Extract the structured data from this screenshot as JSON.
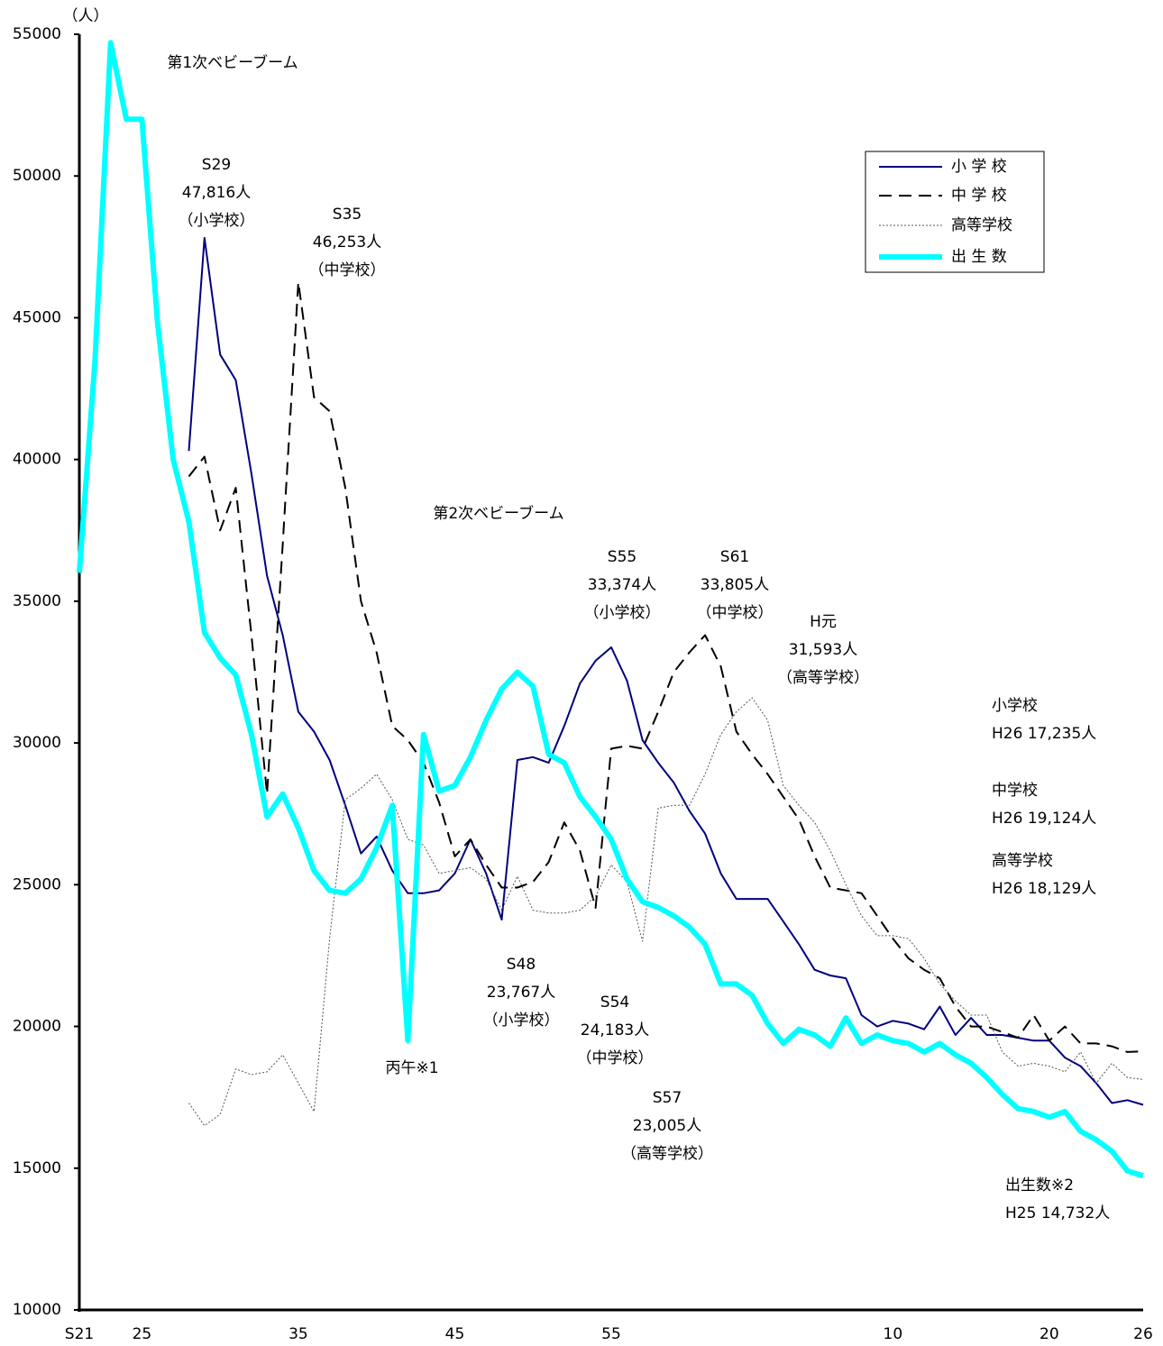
{
  "chart_data": {
    "type": "line",
    "unit_label": "（人）",
    "categories": [
      "S21",
      null,
      null,
      null,
      "25",
      null,
      null,
      null,
      null,
      null,
      null,
      null,
      null,
      null,
      "35",
      null,
      null,
      null,
      null,
      null,
      null,
      null,
      null,
      null,
      "45",
      null,
      null,
      null,
      null,
      null,
      null,
      null,
      null,
      null,
      "55",
      null,
      null,
      null,
      null,
      null,
      null,
      null,
      null,
      null,
      null,
      null,
      null,
      null,
      null,
      null,
      null,
      null,
      "10",
      null,
      null,
      null,
      null,
      null,
      null,
      null,
      null,
      null,
      "20",
      null,
      null,
      null,
      null,
      null,
      "26"
    ],
    "ylim": [
      10000,
      55000
    ],
    "yticks": [
      10000,
      15000,
      20000,
      25000,
      30000,
      35000,
      40000,
      45000,
      50000,
      55000
    ],
    "grid": false,
    "legend": "upper right",
    "series": [
      {
        "name": "小 学 校",
        "color": "#000080",
        "width": 2,
        "dash": "solid",
        "values": [
          null,
          null,
          null,
          null,
          null,
          null,
          null,
          40300,
          47816,
          43700,
          42800,
          39500,
          35900,
          33800,
          31100,
          30400,
          29400,
          27800,
          26100,
          26700,
          25500,
          24700,
          24700,
          24800,
          25400,
          26600,
          25400,
          23767,
          29400,
          29500,
          29300,
          30600,
          32100,
          32900,
          33374,
          32200,
          30100,
          29300,
          28600,
          27600,
          26800,
          25400,
          24500,
          24500,
          24500,
          23700,
          22900,
          22000,
          21800,
          21700,
          20400,
          20000,
          20200,
          20100,
          19900,
          20700,
          19700,
          20300,
          19700,
          19700,
          19600,
          19500,
          19500,
          18900,
          18600,
          18000,
          17300,
          17400,
          17235
        ]
      },
      {
        "name": "中 学 校",
        "color": "#000000",
        "width": 2,
        "dash": "dashed",
        "values": [
          null,
          null,
          null,
          null,
          null,
          null,
          null,
          39400,
          40100,
          37500,
          39000,
          33800,
          28200,
          37000,
          46253,
          42200,
          41700,
          39000,
          35000,
          33200,
          30600,
          30100,
          29300,
          27900,
          26000,
          26600,
          25700,
          24900,
          24900,
          25100,
          25800,
          27200,
          26200,
          24183,
          29800,
          29900,
          29800,
          31100,
          32500,
          33200,
          33805,
          32700,
          30400,
          29600,
          28900,
          28100,
          27300,
          26000,
          24900,
          24800,
          24700,
          23900,
          23100,
          22400,
          22000,
          21700,
          20700,
          20000,
          20000,
          19800,
          19600,
          20400,
          19500,
          20000,
          19400,
          19400,
          19300,
          19100,
          19124
        ]
      },
      {
        "name": "高等学校",
        "color": "#555555",
        "width": 1,
        "dash": "dotted",
        "values": [
          null,
          null,
          null,
          null,
          null,
          null,
          null,
          17300,
          16500,
          16900,
          18500,
          18300,
          18400,
          19000,
          18000,
          17000,
          23100,
          28000,
          28400,
          28900,
          28000,
          26600,
          26400,
          25400,
          25500,
          25600,
          25200,
          24100,
          25300,
          24100,
          24000,
          24000,
          24100,
          24600,
          25700,
          25100,
          23005,
          27700,
          27800,
          27800,
          28900,
          30300,
          31100,
          31593,
          30800,
          28500,
          27800,
          27200,
          26200,
          25000,
          23900,
          23200,
          23200,
          23100,
          22400,
          21500,
          20900,
          20400,
          20400,
          19100,
          18600,
          18700,
          18600,
          18400,
          19100,
          18000,
          18700,
          18200,
          18129
        ]
      },
      {
        "name": "出 生 数",
        "color": "#00ffff",
        "width": 6,
        "dash": "solid",
        "values": [
          36000,
          43500,
          54700,
          52000,
          52000,
          44800,
          40000,
          37800,
          33900,
          33000,
          32400,
          30300,
          27400,
          28200,
          27000,
          25500,
          24800,
          24700,
          25200,
          26300,
          27800,
          19500,
          30300,
          28300,
          28500,
          29500,
          30800,
          31900,
          32500,
          32000,
          29600,
          29300,
          28100,
          27400,
          26600,
          25200,
          24400,
          24200,
          23900,
          23500,
          22900,
          21500,
          21500,
          21100,
          20100,
          19400,
          19900,
          19700,
          19300,
          20300,
          19400,
          19700,
          19500,
          19400,
          19100,
          19400,
          19000,
          18700,
          18200,
          17600,
          17100,
          17000,
          16800,
          17000,
          16300,
          16000,
          15600,
          14900,
          14732
        ]
      }
    ],
    "annotations": [
      [
        "第1次ベビーブーム"
      ],
      [
        "S29",
        "47,816人",
        "（小学校）"
      ],
      [
        "S35",
        "46,253人",
        "（中学校）"
      ],
      [
        "第2次ベビーブーム"
      ],
      [
        "S55",
        "33,374人",
        "（小学校）"
      ],
      [
        "S61",
        "33,805人",
        "（中学校）"
      ],
      [
        "H元",
        "31,593人",
        "（高等学校）"
      ],
      [
        "小学校",
        "H26 17,235人"
      ],
      [
        "中学校",
        "H26 19,124人"
      ],
      [
        "高等学校",
        "H26 18,129人"
      ],
      [
        "S48",
        "23,767人",
        "（小学校）"
      ],
      [
        "S54",
        "24,183人",
        "（中学校）"
      ],
      [
        "丙午※1"
      ],
      [
        "S57",
        "23,005人",
        "（高等学校）"
      ],
      [
        "出生数※2",
        "H25 14,732人"
      ]
    ]
  }
}
